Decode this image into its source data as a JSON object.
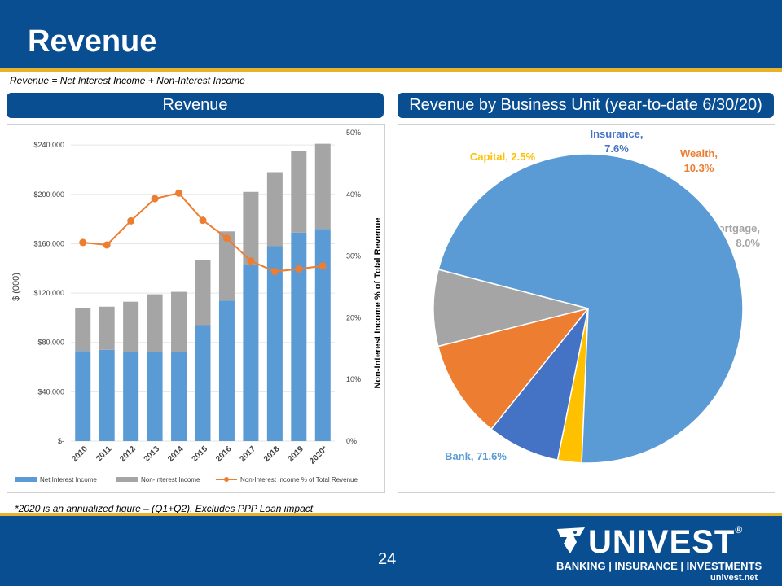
{
  "title": "Revenue",
  "formula": "Revenue = Net Interest Income + Non-Interest Income",
  "left_panel_title": "Revenue",
  "right_panel_title": "Revenue by Business Unit (year-to-date 6/30/20)",
  "footnote": "*2020 is an annualized figure – (Q1+Q2).  Excludes PPP Loan impact",
  "page_number": "24",
  "logo": {
    "word": "UNIVEST",
    "tagline": "BANKING | INSURANCE | INVESTMENTS",
    "url": "univest.net",
    "registered": "®"
  },
  "colors": {
    "brand_blue": "#0a4e92",
    "gold": "#e7b32b"
  },
  "chart_data": [
    {
      "type": "bar",
      "stacked": true,
      "categories": [
        "2010",
        "2011",
        "2012",
        "2013",
        "2014",
        "2015",
        "2016",
        "2017",
        "2018",
        "2019",
        "2020*"
      ],
      "series": [
        {
          "name": "Net Interest Income",
          "color": "#5b9bd5",
          "values": [
            73000,
            74000,
            72000,
            72000,
            72000,
            94000,
            114000,
            143000,
            158000,
            169000,
            172000
          ]
        },
        {
          "name": "Non-Interest Income",
          "color": "#a5a5a5",
          "values": [
            35000,
            35000,
            41000,
            47000,
            49000,
            53000,
            56000,
            59000,
            60000,
            66000,
            69000
          ]
        },
        {
          "name": "Non-Interest Income % of Total Revenue",
          "type": "line",
          "axis": "secondary",
          "color": "#ed7d31",
          "values": [
            32.2,
            31.8,
            35.7,
            39.3,
            40.2,
            35.8,
            32.9,
            29.2,
            27.5,
            27.9,
            28.4
          ]
        }
      ],
      "ylabel": "$ (000)",
      "y2label": "Non-Interest Income % of Total Revenue",
      "ylim": [
        0,
        250000
      ],
      "yticks": [
        0,
        40000,
        80000,
        120000,
        160000,
        200000,
        240000
      ],
      "ytick_labels": [
        "$-",
        "$40,000",
        "$80,000",
        "$120,000",
        "$160,000",
        "$200,000",
        "$240,000"
      ],
      "y2lim": [
        0,
        50
      ],
      "y2ticks": [
        0,
        10,
        20,
        30,
        40,
        50
      ],
      "y2tick_labels": [
        "0%",
        "10%",
        "20%",
        "30%",
        "40%",
        "50%"
      ],
      "legend": "bottom"
    },
    {
      "type": "pie",
      "title": "Revenue by Business Unit (year-to-date 6/30/20)",
      "slices": [
        {
          "label": "Capital",
          "value": 2.5,
          "display": "2.5%",
          "color": "#ffc000",
          "label_color": "#ffc000"
        },
        {
          "label": "Insurance",
          "value": 7.6,
          "display": "7.6%",
          "color": "#4472c4",
          "label_color": "#4472c4"
        },
        {
          "label": "Wealth",
          "value": 10.3,
          "display": "10.3%",
          "color": "#ed7d31",
          "label_color": "#ed7d31"
        },
        {
          "label": "Mortgage",
          "value": 8.0,
          "display": "8.0%",
          "color": "#a5a5a5",
          "label_color": "#a5a5a5"
        },
        {
          "label": "Bank",
          "value": 71.6,
          "display": "71.6%",
          "color": "#5b9bd5",
          "label_color": "#5b9bd5"
        }
      ]
    }
  ]
}
